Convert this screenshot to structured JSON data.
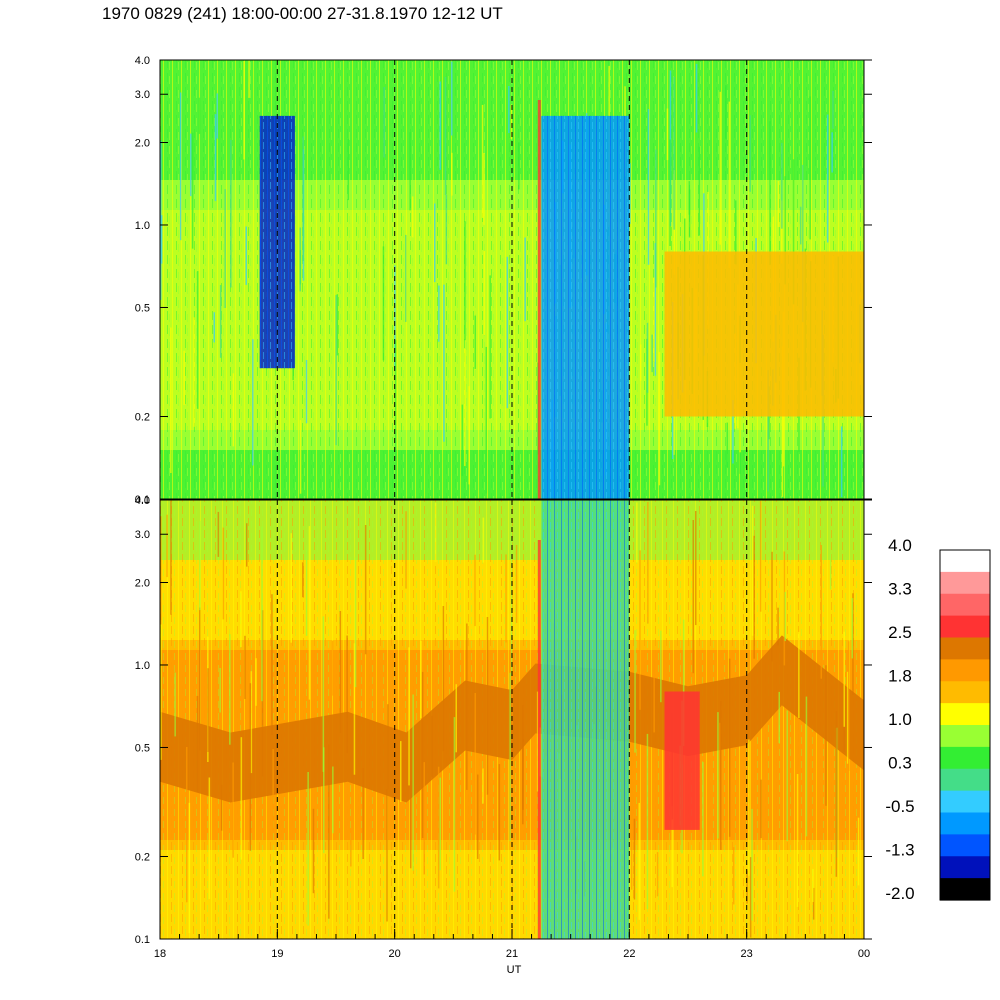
{
  "title": "1970 0829 (241) 18:00-00:00 27-31.8.1970  12-12 UT",
  "chart_data": {
    "type": "heatmap",
    "title": "1970 0829 (241) 18:00-00:00 27-31.8.1970  12-12 UT",
    "xlabel": "UT",
    "x_ticks": [
      "18",
      "19",
      "20",
      "21",
      "22",
      "23",
      "00"
    ],
    "x_range": [
      18,
      24
    ],
    "y_scale": "log",
    "y_range": [
      0.1,
      4.0
    ],
    "y_ticks": [
      "0.1",
      "0.2",
      "0.5",
      "1.0",
      "2.0",
      "3.0",
      "4.0"
    ],
    "dashed_verticals_ut": [
      19,
      20,
      21,
      22,
      23
    ],
    "panels": [
      {
        "name": "upper",
        "dominant_levels": "0.3 to 1.0 (green-yellow)",
        "features": [
          {
            "ut_range": [
              18.85,
              19.15
            ],
            "freq_range": [
              0.3,
              2.5
            ],
            "level": "-2.0 to -1.3"
          },
          {
            "ut_range": [
              21.25,
              22.0
            ],
            "freq_range": [
              0.1,
              2.5
            ],
            "level": "-1.3 to -0.5"
          },
          {
            "ut_range": [
              22.3,
              24.0
            ],
            "freq_range": [
              0.2,
              0.8
            ],
            "level": "1.0 to 1.8"
          }
        ]
      },
      {
        "name": "lower",
        "dominant_levels": "1.0 to 2.5 (yellow-orange)",
        "features": [
          {
            "ut_range": [
              18.0,
              24.0
            ],
            "freq_range": [
              0.3,
              1.0
            ],
            "level": "1.8 to 2.5"
          },
          {
            "ut_range": [
              21.25,
              22.0
            ],
            "freq_range": [
              0.1,
              4.0
            ],
            "level": "-0.5 to 0.3"
          },
          {
            "ut_range": [
              22.3,
              22.6
            ],
            "freq_range": [
              0.25,
              0.8
            ],
            "level": "2.5 to 3.3"
          }
        ]
      }
    ],
    "colorbar": {
      "labels": [
        "4.0",
        "3.3",
        "2.5",
        "1.8",
        "1.0",
        "0.3",
        "-0.5",
        "-1.3",
        "-2.0"
      ],
      "colors": [
        "#ffffff",
        "#ff9999",
        "#ff6666",
        "#ff3333",
        "#dd7700",
        "#ff9900",
        "#ffbb00",
        "#ffff00",
        "#99ff33",
        "#33ee33",
        "#44dd88",
        "#33ccff",
        "#0099ff",
        "#0055ff",
        "#0011bb",
        "#000000"
      ]
    }
  }
}
